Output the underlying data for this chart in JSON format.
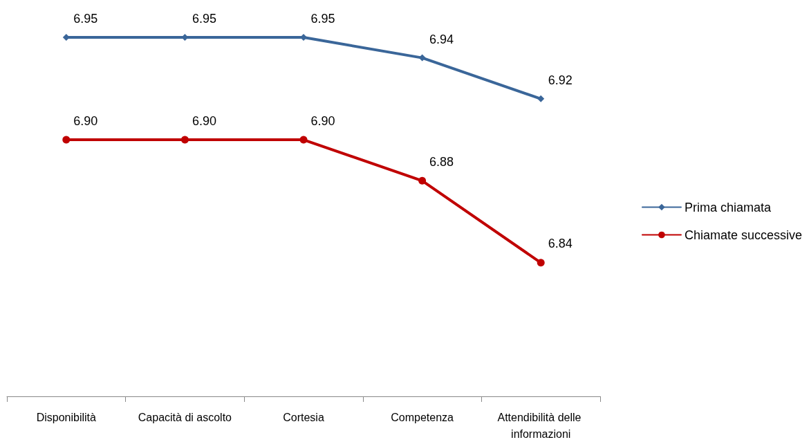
{
  "chart_data": {
    "type": "line",
    "categories": [
      "Disponibilità",
      "Capacità di ascolto",
      "Cortesia",
      "Competenza",
      "Attendibilità delle informazioni"
    ],
    "series": [
      {
        "name": "Prima chiamata",
        "color": "#3a6699",
        "marker": "diamond",
        "values": [
          6.95,
          6.95,
          6.95,
          6.94,
          6.92
        ],
        "value_labels": [
          "6.95",
          "6.95",
          "6.95",
          "6.94",
          "6.92"
        ]
      },
      {
        "name": "Chiamate successive",
        "color": "#c00000",
        "marker": "circle",
        "values": [
          6.9,
          6.9,
          6.9,
          6.88,
          6.84
        ],
        "value_labels": [
          "6.90",
          "6.90",
          "6.90",
          "6.88",
          "6.84"
        ]
      }
    ],
    "grid": false,
    "legend": "right",
    "line_style": "solid"
  }
}
